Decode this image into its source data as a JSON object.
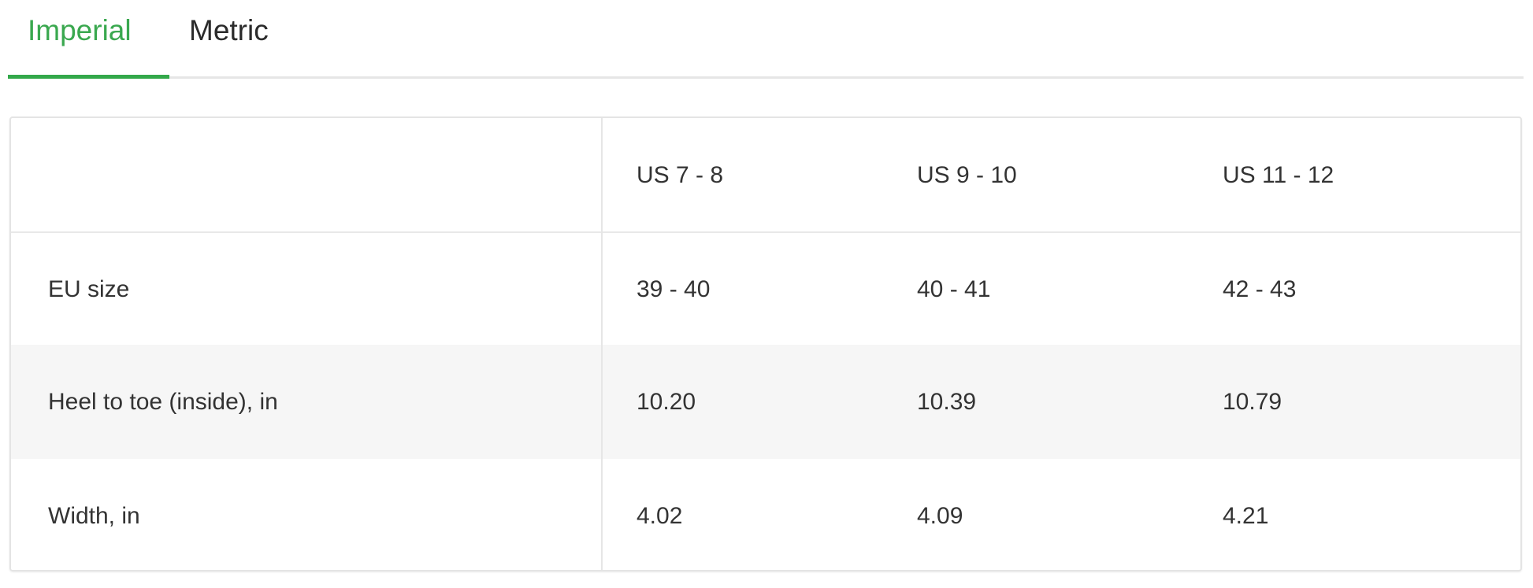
{
  "tabs": [
    {
      "label": "Imperial",
      "active": true
    },
    {
      "label": "Metric",
      "active": false
    }
  ],
  "colors": {
    "accent": "#3aa84f",
    "text": "#333333",
    "shaded_row": "#f6f6f6"
  },
  "table": {
    "headers": [
      "",
      "US 7 - 8",
      "US 9 - 10",
      "US 11 - 12"
    ],
    "rows": [
      [
        "EU size",
        "39 - 40",
        "40 - 41",
        "42 - 43"
      ],
      [
        "Heel to toe (inside), in",
        "10.20",
        "10.39",
        "10.79"
      ],
      [
        "Width, in",
        "4.02",
        "4.09",
        "4.21"
      ]
    ]
  }
}
